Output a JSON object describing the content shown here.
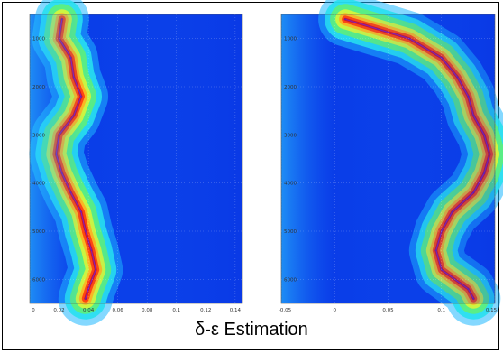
{
  "caption": "δ-ε Estimation",
  "chart_data": [
    {
      "type": "heatmap",
      "panel": "left",
      "title": "",
      "xlabel": "",
      "ylabel": "",
      "xlim": [
        0,
        0.145
      ],
      "ylim": [
        500,
        6500
      ],
      "xticks": [
        "0",
        "0.02",
        "0.04",
        "0.06",
        "0.08",
        "0.1",
        "0.12",
        "0.14"
      ],
      "yticks": [
        "1000",
        "2000",
        "3000",
        "4000",
        "5000",
        "6000"
      ],
      "ridge": {
        "depth": [
          600,
          1000,
          1400,
          1800,
          2200,
          2600,
          3000,
          3400,
          3800,
          4200,
          4600,
          5000,
          5400,
          5800,
          6200,
          6400
        ],
        "value": [
          0.022,
          0.02,
          0.028,
          0.03,
          0.035,
          0.03,
          0.02,
          0.018,
          0.022,
          0.028,
          0.035,
          0.038,
          0.042,
          0.045,
          0.04,
          0.038
        ]
      }
    },
    {
      "type": "heatmap",
      "panel": "right",
      "title": "",
      "xlabel": "",
      "ylabel": "",
      "xlim": [
        -0.05,
        0.15
      ],
      "ylim": [
        500,
        6500
      ],
      "xticks": [
        "-0.05",
        "0",
        "0.05",
        "0.1",
        "0.15"
      ],
      "yticks": [
        "1000",
        "2000",
        "3000",
        "4000",
        "5000",
        "6000"
      ],
      "ridge": {
        "depth": [
          600,
          800,
          1000,
          1400,
          1800,
          2200,
          2600,
          3000,
          3400,
          3800,
          4200,
          4600,
          5000,
          5400,
          5800,
          6200,
          6400
        ],
        "value": [
          0.01,
          0.04,
          0.07,
          0.1,
          0.115,
          0.125,
          0.13,
          0.14,
          0.145,
          0.14,
          0.13,
          0.11,
          0.1,
          0.095,
          0.1,
          0.125,
          0.13
        ]
      }
    }
  ]
}
